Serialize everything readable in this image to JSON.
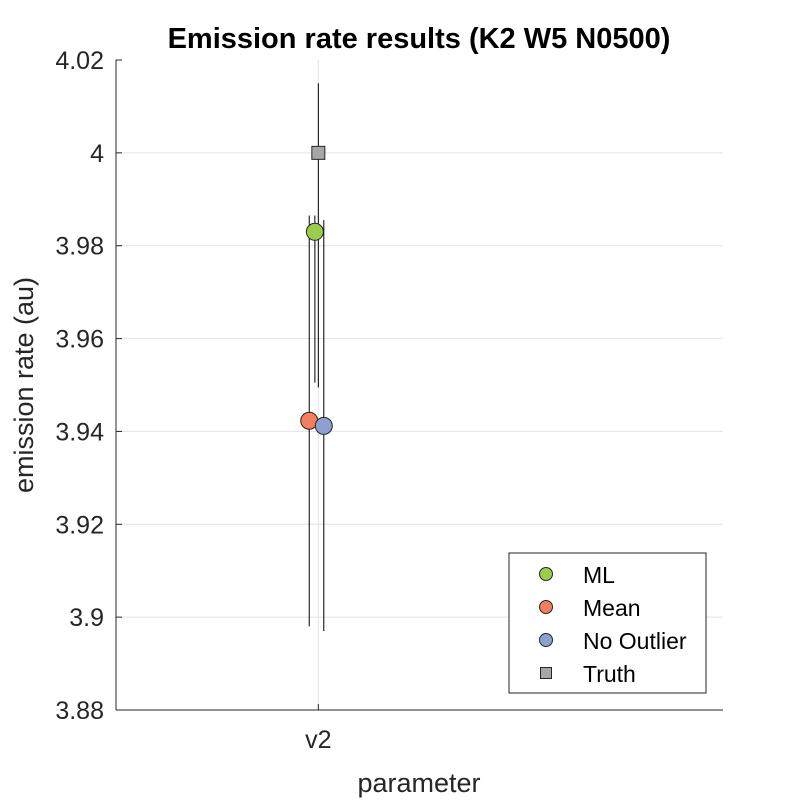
{
  "chart_data": {
    "type": "scatter",
    "title": "Emission rate results (K2 W5 N0500)",
    "xlabel": "parameter",
    "ylabel": "emission rate (au)",
    "categories": [
      "v2"
    ],
    "ylim": [
      3.88,
      4.02
    ],
    "yticks": [
      "3.88",
      "3.9",
      "3.92",
      "3.94",
      "3.96",
      "3.98",
      "4",
      "4.02"
    ],
    "grid": true,
    "legend_position": "bottom-right",
    "series": [
      {
        "name": "ML",
        "marker": "circle",
        "color": "#9ACD4C",
        "offset": -0.017,
        "values": [
          3.983
        ],
        "err_low": [
          3.9505
        ],
        "err_high": [
          3.9865
        ]
      },
      {
        "name": "Mean",
        "marker": "circle",
        "color": "#F47F5C",
        "offset": -0.045,
        "values": [
          3.9423
        ],
        "err_low": [
          3.898
        ],
        "err_high": [
          3.9865
        ]
      },
      {
        "name": "No Outlier",
        "marker": "circle",
        "color": "#8FA0CF",
        "offset": 0.027,
        "values": [
          3.9412
        ],
        "err_low": [
          3.897
        ],
        "err_high": [
          3.9855
        ]
      },
      {
        "name": "Truth",
        "marker": "square",
        "color": "#A6A6A6",
        "offset": 0.0,
        "values": [
          4.0
        ],
        "err_low": [
          3.9495
        ],
        "err_high": [
          4.015
        ]
      }
    ]
  }
}
